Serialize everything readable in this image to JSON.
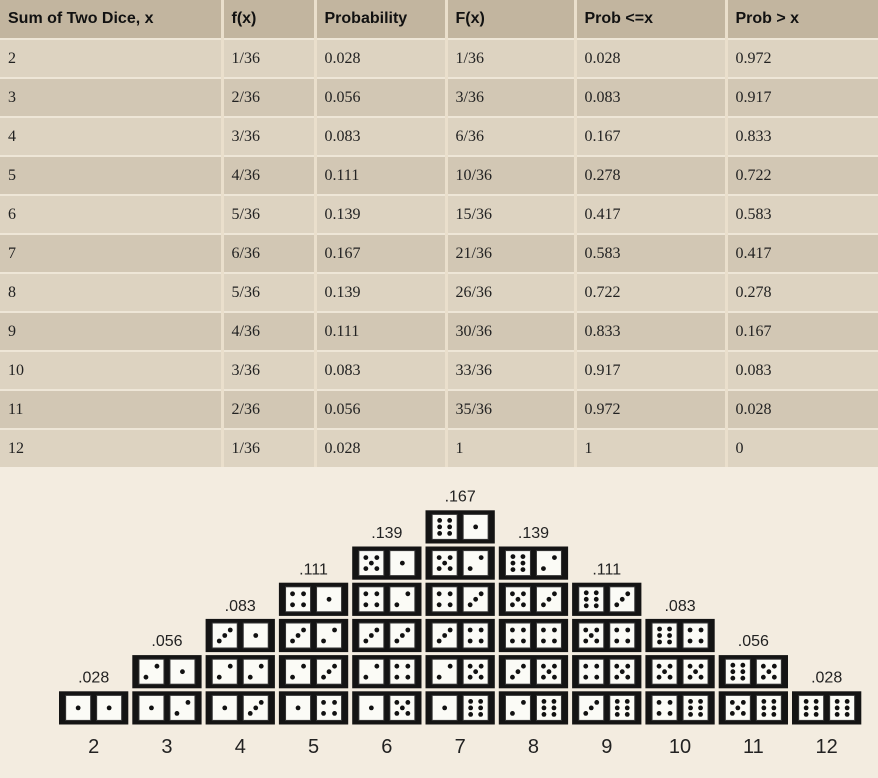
{
  "table": {
    "headers": [
      "Sum of Two Dice, x",
      "f(x)",
      "Probability",
      "F(x)",
      "Prob <=x",
      "Prob > x"
    ],
    "rows": [
      [
        "2",
        "1/36",
        "0.028",
        "1/36",
        "0.028",
        "0.972"
      ],
      [
        "3",
        "2/36",
        "0.056",
        "3/36",
        "0.083",
        "0.917"
      ],
      [
        "4",
        "3/36",
        "0.083",
        "6/36",
        "0.167",
        "0.833"
      ],
      [
        "5",
        "4/36",
        "0.111",
        "10/36",
        "0.278",
        "0.722"
      ],
      [
        "6",
        "5/36",
        "0.139",
        "15/36",
        "0.417",
        "0.583"
      ],
      [
        "7",
        "6/36",
        "0.167",
        "21/36",
        "0.583",
        "0.417"
      ],
      [
        "8",
        "5/36",
        "0.139",
        "26/36",
        "0.722",
        "0.278"
      ],
      [
        "9",
        "4/36",
        "0.111",
        "30/36",
        "0.833",
        "0.167"
      ],
      [
        "10",
        "3/36",
        "0.083",
        "33/36",
        "0.917",
        "0.083"
      ],
      [
        "11",
        "2/36",
        "0.056",
        "35/36",
        "0.972",
        "0.028"
      ],
      [
        "12",
        "1/36",
        "0.028",
        "1",
        "1",
        "0"
      ]
    ]
  },
  "chart_data": {
    "type": "bar",
    "title": "",
    "xlabel": "",
    "ylabel": "",
    "categories": [
      "2",
      "3",
      "4",
      "5",
      "6",
      "7",
      "8",
      "9",
      "10",
      "11",
      "12"
    ],
    "values": [
      0.028,
      0.056,
      0.083,
      0.111,
      0.139,
      0.167,
      0.139,
      0.111,
      0.083,
      0.056,
      0.028
    ],
    "value_labels": [
      ".028",
      ".056",
      ".083",
      ".111",
      ".139",
      ".167",
      ".139",
      ".111",
      ".083",
      ".056",
      ".028"
    ],
    "counts": [
      1,
      2,
      3,
      4,
      5,
      6,
      5,
      4,
      3,
      2,
      1
    ],
    "dice_pairs": [
      [
        [
          1,
          1
        ]
      ],
      [
        [
          1,
          2
        ],
        [
          2,
          1
        ]
      ],
      [
        [
          1,
          3
        ],
        [
          2,
          2
        ],
        [
          3,
          1
        ]
      ],
      [
        [
          1,
          4
        ],
        [
          2,
          3
        ],
        [
          3,
          2
        ],
        [
          4,
          1
        ]
      ],
      [
        [
          1,
          5
        ],
        [
          2,
          4
        ],
        [
          3,
          3
        ],
        [
          4,
          2
        ],
        [
          5,
          1
        ]
      ],
      [
        [
          1,
          6
        ],
        [
          2,
          5
        ],
        [
          3,
          4
        ],
        [
          4,
          3
        ],
        [
          5,
          2
        ],
        [
          6,
          1
        ]
      ],
      [
        [
          2,
          6
        ],
        [
          3,
          5
        ],
        [
          4,
          4
        ],
        [
          5,
          3
        ],
        [
          6,
          2
        ]
      ],
      [
        [
          3,
          6
        ],
        [
          4,
          5
        ],
        [
          5,
          4
        ],
        [
          6,
          3
        ]
      ],
      [
        [
          4,
          6
        ],
        [
          5,
          5
        ],
        [
          6,
          4
        ]
      ],
      [
        [
          5,
          6
        ],
        [
          6,
          5
        ]
      ],
      [
        [
          6,
          6
        ]
      ]
    ],
    "colors": {
      "box": "#141414",
      "die": "#fbfbf6",
      "background": "#f3ece0"
    }
  }
}
